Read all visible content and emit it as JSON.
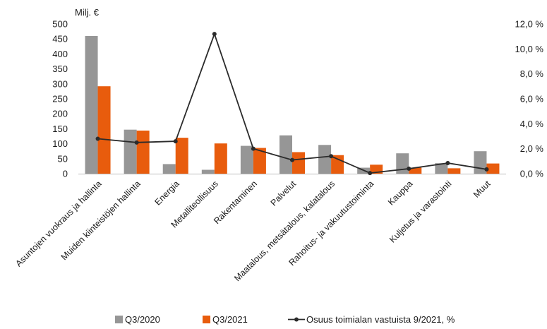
{
  "chart_data": {
    "type": "bar",
    "y_unit_label": "Milj. €",
    "categories": [
      "Asuntojen vuokraus ja hallinta",
      "Muiden kiinteistöjen hallinta",
      "Energia",
      "Metalliteollisuus",
      "Rakentaminen",
      "Palvelut",
      "Maatalous, metsätalous, kalatalous",
      "Rahoitus- ja vakuutustoiminta",
      "Kauppa",
      "Kuljetus ja varastointi",
      "Muut"
    ],
    "series": [
      {
        "name": "Q3/2020",
        "kind": "bar",
        "axis": "left",
        "color": "#969696",
        "values": [
          460,
          147,
          32,
          13,
          93,
          128,
          96,
          20,
          68,
          35,
          75
        ]
      },
      {
        "name": "Q3/2021",
        "kind": "bar",
        "axis": "left",
        "color": "#e85c0d",
        "values": [
          292,
          144,
          120,
          101,
          86,
          72,
          62,
          30,
          20,
          18,
          34
        ]
      },
      {
        "name": "Osuus toimialan vastuista 9/2021, %",
        "kind": "line",
        "axis": "right",
        "color": "#2b2b2b",
        "values": [
          2.8,
          2.5,
          2.6,
          11.2,
          2.0,
          1.1,
          1.4,
          0.05,
          0.4,
          0.85,
          0.35
        ]
      }
    ],
    "left_axis": {
      "min": 0,
      "max": 500,
      "step": 50,
      "tick_labels": [
        "0",
        "50",
        "100",
        "150",
        "200",
        "250",
        "300",
        "350",
        "400",
        "450",
        "500"
      ]
    },
    "right_axis": {
      "min": 0,
      "max": 12,
      "step": 2,
      "tick_labels": [
        "0,0 %",
        "2,0 %",
        "4,0 %",
        "6,0 %",
        "8,0 %",
        "10,0 %",
        "12,0 %"
      ]
    },
    "grid": false,
    "legend_position": "bottom"
  }
}
